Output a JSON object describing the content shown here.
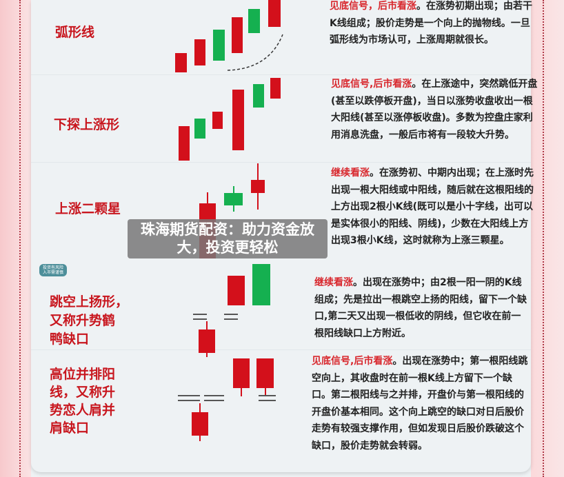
{
  "colors": {
    "bullish": "#d3101b",
    "bearish": "#15b050",
    "highlight": "#d8262c"
  },
  "patterns": [
    {
      "name": "弧形线",
      "signal": "见底信号，后市看涨",
      "text": "。在涨势初期出现；由若干K线组成；股价走势是一个向上的抛物线。一旦弧形线为市场认可，上涨周期就很长。"
    },
    {
      "name": "下探上涨形",
      "signal": "见底信号,后市看涨",
      "text": "。在上涨途中，突然跳低开盘(甚至以跌停板开盘)，当日以涨势收盘收出一根大阳线(甚至以涨停板收盘)。多数为控盘庄家利用消息洗盘，一般后市将有一段较大升势。"
    },
    {
      "name": "上涨二颗星",
      "signal": "继续看涨",
      "text": "。在涨势初、中期内出现；在上涨时先出现一根大阳线或中阳线，随后就在这根阳线的上方出现2根小K线(既可以是小十字线，出可以是实体很小的阳线、阴线)，少数在大阳线上方出现3根小K线，这时就称为上涨三颗星。"
    },
    {
      "name": "跳空上扬形，又称升势鹤鸭缺口",
      "signal": "继续看涨",
      "text": "。出现在涨势中；由2根一阳一阴的K线组成；先是拉出一根跳空上扬的阳线，留下一个缺口,第二天又出现一根低收的阴线，但它收在前一根阳线缺口上方附近。"
    },
    {
      "name": "高位并排阳线，又称升势恋人肩并肩缺口",
      "signal": "见底信号,后市看涨",
      "text": "。出现在涨势中；第一根阳线跳空向上，其收盘时在前一根K线上方留下一个缺口。第二根阳线与之并排，开盘价与第一根阳线的开盘价基本相同。这个向上跳空的缺口对日后股价走势有较强支撑作用，但如发现日后股价跌破这个缺口，股价走势就会转弱。"
    }
  ],
  "labels": [
    "弧形线",
    "下探上涨形",
    "上涨二颗星",
    "跳空上扬形，\n又称升势鹤\n鸭缺口",
    "高位并排阳\n线，又称升\n势恋人肩并\n肩缺口"
  ],
  "badge": "投资有风险\n入市需谨慎",
  "banner": "珠海期货配资：助力资金放大，投资更轻松"
}
